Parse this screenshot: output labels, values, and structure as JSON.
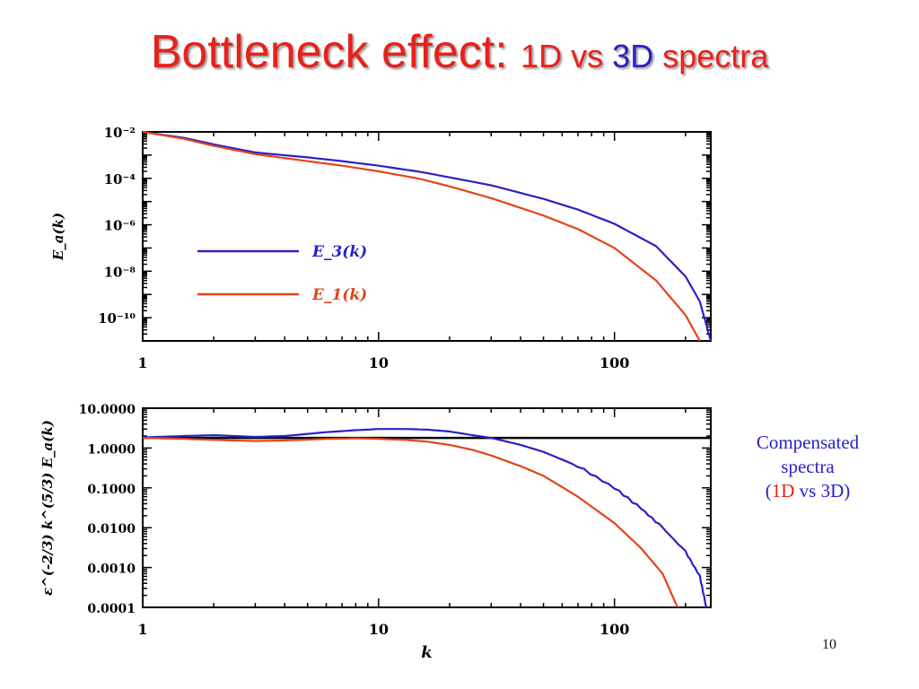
{
  "slide": {
    "title_main": "Bottleneck effect: ",
    "title_sub_1": "1D vs ",
    "title_sub_3d": "3D",
    "title_sub_2": " spectra",
    "caption_line1": "Compensated",
    "caption_line2": "spectra",
    "caption_open": "(",
    "caption_1d": "1D",
    "caption_rest": " vs 3D)",
    "page_number": "10"
  },
  "chart_data": [
    {
      "type": "line",
      "scale": "log-log",
      "xlabel": "",
      "ylabel": "E_a(k)",
      "xlim": [
        1,
        256
      ],
      "ylim": [
        1e-11,
        0.01
      ],
      "xticks": [
        "1",
        "10",
        "100"
      ],
      "yticks": [
        "10⁻²",
        "10⁻⁴",
        "10⁻⁶",
        "10⁻⁸",
        "10⁻¹⁰"
      ],
      "legend_position": "center-left",
      "series": [
        {
          "name": "E_3(k)",
          "color": "#2a21c4",
          "x": [
            1,
            1.5,
            2,
            3,
            5,
            7,
            10,
            15,
            20,
            30,
            50,
            70,
            100,
            150,
            200,
            230,
            256
          ],
          "y": [
            0.01,
            0.0055,
            0.0029,
            0.0013,
            0.0008,
            0.00055,
            0.00035,
            0.00019,
            0.00011,
            5e-05,
            1.3e-05,
            4.5e-06,
            1.1e-06,
            1.2e-07,
            6e-09,
            5e-10,
            1e-11
          ]
        },
        {
          "name": "E_1(k)",
          "color": "#e0461b",
          "x": [
            1,
            1.5,
            2,
            3,
            5,
            7,
            10,
            15,
            20,
            30,
            50,
            70,
            100,
            150,
            200,
            230
          ],
          "y": [
            0.01,
            0.005,
            0.0025,
            0.0011,
            0.00055,
            0.00035,
            0.0002,
            9.5e-05,
            4.5e-05,
            1.4e-05,
            2.5e-06,
            6.5e-07,
            1e-07,
            4e-09,
            1.3e-10,
            1e-11
          ]
        }
      ]
    },
    {
      "type": "line",
      "scale": "log-log",
      "xlabel": "k",
      "ylabel": "ε^(-2/3) k^(5/3) E_a(k)",
      "xlim": [
        1,
        256
      ],
      "ylim": [
        0.0001,
        10
      ],
      "xticks": [
        "1",
        "10",
        "100"
      ],
      "yticks": [
        "10.0000",
        "1.0000",
        "0.1000",
        "0.0100",
        "0.0010",
        "0.0001"
      ],
      "reference_line": 1.8,
      "series": [
        {
          "name": "3D",
          "color": "#2a21c4",
          "x": [
            1,
            1.5,
            2,
            3,
            4,
            6,
            8,
            10,
            13,
            16,
            20,
            25,
            30,
            40,
            50,
            70,
            100,
            130,
            160,
            200,
            230,
            245
          ],
          "y": [
            1.85,
            2.0,
            2.1,
            1.9,
            2.0,
            2.5,
            2.8,
            3.0,
            3.0,
            2.9,
            2.6,
            2.1,
            1.8,
            1.2,
            0.8,
            0.35,
            0.1,
            0.03,
            0.01,
            0.0025,
            0.0006,
            0.0001
          ]
        },
        {
          "name": "1D",
          "color": "#e0461b",
          "x": [
            1,
            1.5,
            2,
            3,
            4,
            6,
            8,
            10,
            13,
            16,
            20,
            25,
            30,
            40,
            50,
            70,
            100,
            130,
            160,
            185
          ],
          "y": [
            1.8,
            1.7,
            1.6,
            1.5,
            1.55,
            1.7,
            1.75,
            1.7,
            1.6,
            1.45,
            1.2,
            0.9,
            0.65,
            0.35,
            0.2,
            0.06,
            0.013,
            0.003,
            0.0007,
            0.0001
          ]
        }
      ]
    }
  ]
}
